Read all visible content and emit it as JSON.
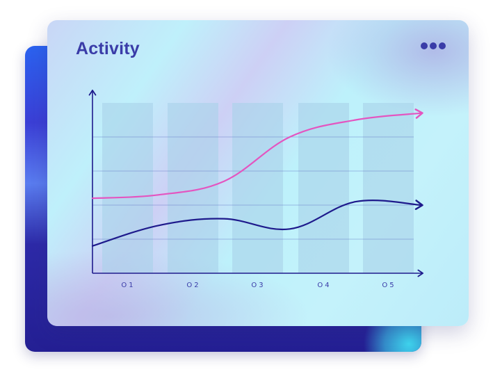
{
  "card": {
    "title": "Activity",
    "menu_icon": "more-horizontal-icon"
  },
  "colors": {
    "title": "#3a3ca8",
    "series_pink": "#e455c0",
    "series_navy": "#1e1a8c",
    "axis": "#1e1a8c",
    "bars": "#a9d2ea"
  },
  "chart_data": {
    "type": "line",
    "categories": [
      "01",
      "02",
      "03",
      "04",
      "05"
    ],
    "category_labels": [
      "O1",
      "O2",
      "O3",
      "O4",
      "O5"
    ],
    "series": [
      {
        "values": [
          2.2,
          2.3,
          2.7,
          4.0,
          4.5,
          4.7
        ],
        "color": "#e455c0"
      },
      {
        "values": [
          0.8,
          1.4,
          1.6,
          1.3,
          2.1,
          2.0
        ],
        "color": "#1e1a8c"
      }
    ],
    "x": [
      0,
      1,
      2,
      3,
      4,
      5
    ],
    "ylim": [
      0,
      5
    ],
    "grid": true,
    "background_bars": true,
    "axis_arrows": true
  }
}
